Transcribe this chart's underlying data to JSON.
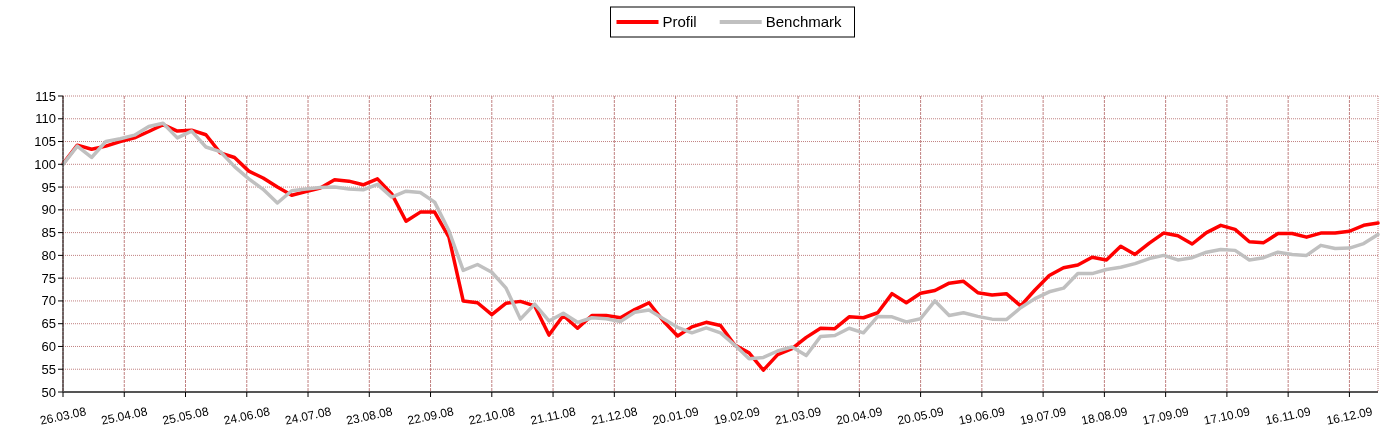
{
  "chart_data": {
    "type": "line",
    "x": [
      "2008-03-26",
      "2008-04-02",
      "2008-04-09",
      "2008-04-16",
      "2008-04-23",
      "2008-04-30",
      "2008-05-07",
      "2008-05-14",
      "2008-05-21",
      "2008-05-28",
      "2008-06-04",
      "2008-06-11",
      "2008-06-18",
      "2008-06-25",
      "2008-07-02",
      "2008-07-09",
      "2008-07-16",
      "2008-07-23",
      "2008-07-30",
      "2008-08-06",
      "2008-08-13",
      "2008-08-20",
      "2008-08-27",
      "2008-09-03",
      "2008-09-10",
      "2008-09-17",
      "2008-09-24",
      "2008-10-01",
      "2008-10-08",
      "2008-10-15",
      "2008-10-22",
      "2008-10-29",
      "2008-11-05",
      "2008-11-12",
      "2008-11-19",
      "2008-11-26",
      "2008-12-03",
      "2008-12-10",
      "2008-12-17",
      "2008-12-24",
      "2008-12-31",
      "2009-01-07",
      "2009-01-14",
      "2009-01-21",
      "2009-01-28",
      "2009-02-04",
      "2009-02-11",
      "2009-02-18",
      "2009-02-25",
      "2009-03-04",
      "2009-03-11",
      "2009-03-18",
      "2009-03-25",
      "2009-04-01",
      "2009-04-08",
      "2009-04-15",
      "2009-04-22",
      "2009-04-29",
      "2009-05-06",
      "2009-05-13",
      "2009-05-20",
      "2009-05-27",
      "2009-06-03",
      "2009-06-10",
      "2009-06-17",
      "2009-06-24",
      "2009-07-01",
      "2009-07-08",
      "2009-07-15",
      "2009-07-22",
      "2009-07-29",
      "2009-08-05",
      "2009-08-12",
      "2009-08-19",
      "2009-08-26",
      "2009-09-02",
      "2009-09-09",
      "2009-09-16",
      "2009-09-23",
      "2009-09-30",
      "2009-10-07",
      "2009-10-14",
      "2009-10-21",
      "2009-10-28",
      "2009-11-04",
      "2009-11-11",
      "2009-11-18",
      "2009-11-25",
      "2009-12-02",
      "2009-12-09",
      "2009-12-16",
      "2009-12-23",
      "2009-12-30"
    ],
    "series": [
      {
        "name": "Profil",
        "color": "#ff0000",
        "values": [
          100.1,
          104.2,
          103.3,
          104,
          105,
          105.8,
          107.2,
          108.7,
          107.3,
          107.5,
          106.5,
          102.5,
          101.5,
          98.5,
          97,
          95,
          93.2,
          94,
          94.8,
          96.6,
          96.3,
          95.5,
          96.8,
          93.5,
          87.5,
          89.5,
          89.5,
          84,
          70,
          69.6,
          67,
          69.5,
          69.9,
          68.9,
          62.5,
          66.8,
          64,
          66.8,
          66.8,
          66.3,
          68.1,
          69.6,
          65.6,
          62.3,
          64.3,
          65.3,
          64.6,
          60.3,
          58.6,
          54.8,
          58.2,
          59.5,
          62,
          64,
          63.9,
          66.5,
          66.3,
          67.4,
          71.6,
          69.6,
          71.7,
          72.3,
          73.9,
          74.3,
          71.8,
          71.3,
          71.6,
          68.9,
          72.4,
          75.6,
          77.3,
          77.9,
          79.6,
          79,
          82,
          80.2,
          82.7,
          84.9,
          84.3,
          82.5,
          85,
          86.6,
          85.7,
          83,
          82.8,
          84.8,
          84.8,
          84,
          84.9,
          84.9,
          85.3,
          86.6,
          87.1
        ]
      },
      {
        "name": "Benchmark",
        "color": "#c0c0c0",
        "values": [
          100,
          104,
          101.5,
          105,
          105.6,
          106.4,
          108.3,
          109,
          105.8,
          107.3,
          103.8,
          102.8,
          99.5,
          96.8,
          94.5,
          91.5,
          94.2,
          94.6,
          94.9,
          95,
          94.6,
          94.4,
          95.6,
          92.8,
          94.1,
          93.8,
          91.7,
          85.4,
          76.7,
          78,
          76.3,
          72.8,
          66,
          69.3,
          65.6,
          67.3,
          65.3,
          66.3,
          66.1,
          65.5,
          67.5,
          68,
          66.1,
          64.2,
          63,
          64.1,
          63,
          60.3,
          57.3,
          57.6,
          59,
          59.9,
          58,
          62.2,
          62.4,
          64,
          63,
          66.6,
          66.5,
          65.4,
          66.1,
          70,
          66.8,
          67.4,
          66.6,
          66,
          65.9,
          68.5,
          70.5,
          72,
          72.8,
          76,
          76,
          76.9,
          77.4,
          78.2,
          79.3,
          80,
          79,
          79.5,
          80.7,
          81.3,
          81.1,
          79,
          79.5,
          80.7,
          80.2,
          80,
          82.2,
          81.5,
          81.6,
          82.6,
          84.6
        ]
      }
    ],
    "xlim": [
      "2008-03-26",
      "2009-12-30"
    ],
    "xticks": [
      {
        "value": "2008-03-26",
        "label": "26.03.08"
      },
      {
        "value": "2008-04-25",
        "label": "25.04.08"
      },
      {
        "value": "2008-05-25",
        "label": "25.05.08"
      },
      {
        "value": "2008-06-24",
        "label": "24.06.08"
      },
      {
        "value": "2008-07-24",
        "label": "24.07.08"
      },
      {
        "value": "2008-08-23",
        "label": "23.08.08"
      },
      {
        "value": "2008-09-22",
        "label": "22.09.08"
      },
      {
        "value": "2008-10-22",
        "label": "22.10.08"
      },
      {
        "value": "2008-11-21",
        "label": "21.11.08"
      },
      {
        "value": "2008-12-21",
        "label": "21.12.08"
      },
      {
        "value": "2009-01-20",
        "label": "20.01.09"
      },
      {
        "value": "2009-02-19",
        "label": "19.02.09"
      },
      {
        "value": "2009-03-21",
        "label": "21.03.09"
      },
      {
        "value": "2009-04-20",
        "label": "20.04.09"
      },
      {
        "value": "2009-05-20",
        "label": "20.05.09"
      },
      {
        "value": "2009-06-19",
        "label": "19.06.09"
      },
      {
        "value": "2009-07-19",
        "label": "19.07.09"
      },
      {
        "value": "2009-08-18",
        "label": "18.08.09"
      },
      {
        "value": "2009-09-17",
        "label": "17.09.09"
      },
      {
        "value": "2009-10-17",
        "label": "17.10.09"
      },
      {
        "value": "2009-11-16",
        "label": "16.11.09"
      },
      {
        "value": "2009-12-16",
        "label": "16.12.09"
      }
    ],
    "ylim": [
      50,
      115
    ],
    "yticks": [
      50,
      55,
      60,
      65,
      70,
      75,
      80,
      85,
      90,
      95,
      100,
      105,
      110,
      115
    ],
    "grid": true,
    "legend": "top",
    "marker": "none",
    "line_style": "solid"
  }
}
